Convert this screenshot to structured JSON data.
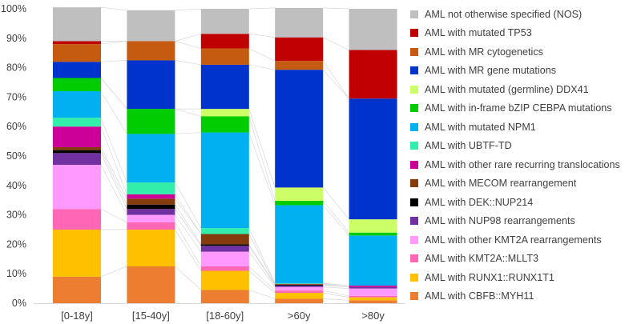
{
  "chart_data": {
    "type": "bar",
    "stacked": true,
    "title": "",
    "xlabel": "",
    "ylabel": "",
    "ylim": [
      0,
      100
    ],
    "yticks": [
      0,
      10,
      20,
      30,
      40,
      50,
      60,
      70,
      80,
      90,
      100
    ],
    "ytick_labels": [
      "0%",
      "10%",
      "20%",
      "30%",
      "40%",
      "50%",
      "60%",
      "70%",
      "80%",
      "90%",
      "100%"
    ],
    "grid": false,
    "legend_position": "right",
    "categories": [
      "[0-18y]",
      "[15-40y]",
      "[18-60y]",
      ">60y",
      ">80y"
    ],
    "series": [
      {
        "name": "AML with CBFB::MYH11",
        "color": "#ED7D31",
        "values": [
          9,
          12.5,
          4.5,
          1.5,
          1
        ]
      },
      {
        "name": "AML with RUNX1::RUNX1T1",
        "color": "#FFC000",
        "values": [
          16,
          12.5,
          6.5,
          2,
          1
        ]
      },
      {
        "name": "AML with KMT2A::MLLT3",
        "color": "#FF66B3",
        "values": [
          7,
          2.5,
          1.5,
          0.8,
          0.5
        ]
      },
      {
        "name": "AML with other KMT2A rearrangements",
        "color": "#FF99FF",
        "values": [
          15,
          2.5,
          5,
          1.2,
          2.5
        ]
      },
      {
        "name": "AML with NUP98 rearrangements",
        "color": "#7030A0",
        "values": [
          4,
          2,
          2,
          0.5,
          0.5
        ]
      },
      {
        "name": "AML with DEK::NUP214",
        "color": "#000000",
        "values": [
          1,
          1.5,
          0.5,
          0.3,
          0
        ]
      },
      {
        "name": "AML with MECOM rearrangement",
        "color": "#843C0C",
        "values": [
          1,
          2,
          3.5,
          0.2,
          0
        ]
      },
      {
        "name": "AML with other rare recurring translocations",
        "color": "#CC0099",
        "values": [
          7,
          1.5,
          0,
          0.1,
          0.5
        ]
      },
      {
        "name": "AML with UBTF-TD",
        "color": "#33EEAA",
        "values": [
          3,
          4,
          2,
          0.2,
          0
        ]
      },
      {
        "name": "AML with mutated NPM1",
        "color": "#00B0F0",
        "values": [
          9,
          16.5,
          32.5,
          26.5,
          17
        ]
      },
      {
        "name": "AML with in-frame bZIP CEBPA mutations",
        "color": "#00CC00",
        "values": [
          4.5,
          8.5,
          5.5,
          1.5,
          1
        ]
      },
      {
        "name": "AML with mutated (germline) DDX41",
        "color": "#CCFF66",
        "values": [
          0,
          0,
          2.5,
          4.5,
          4.5
        ]
      },
      {
        "name": "AML with MR gene mutations",
        "color": "#0033CC",
        "values": [
          5.5,
          16.5,
          15,
          40,
          41
        ]
      },
      {
        "name": "AML with MR  cytogenetics",
        "color": "#C55A11",
        "values": [
          6,
          6.5,
          5.5,
          3,
          0
        ]
      },
      {
        "name": "AML with mutated TP53",
        "color": "#C00000",
        "values": [
          1,
          0,
          5,
          8,
          16.5
        ]
      },
      {
        "name": "AML not otherwise specified (NOS)",
        "color": "#BFBFBF",
        "values": [
          11.5,
          10.5,
          8.5,
          10,
          14
        ]
      }
    ]
  }
}
